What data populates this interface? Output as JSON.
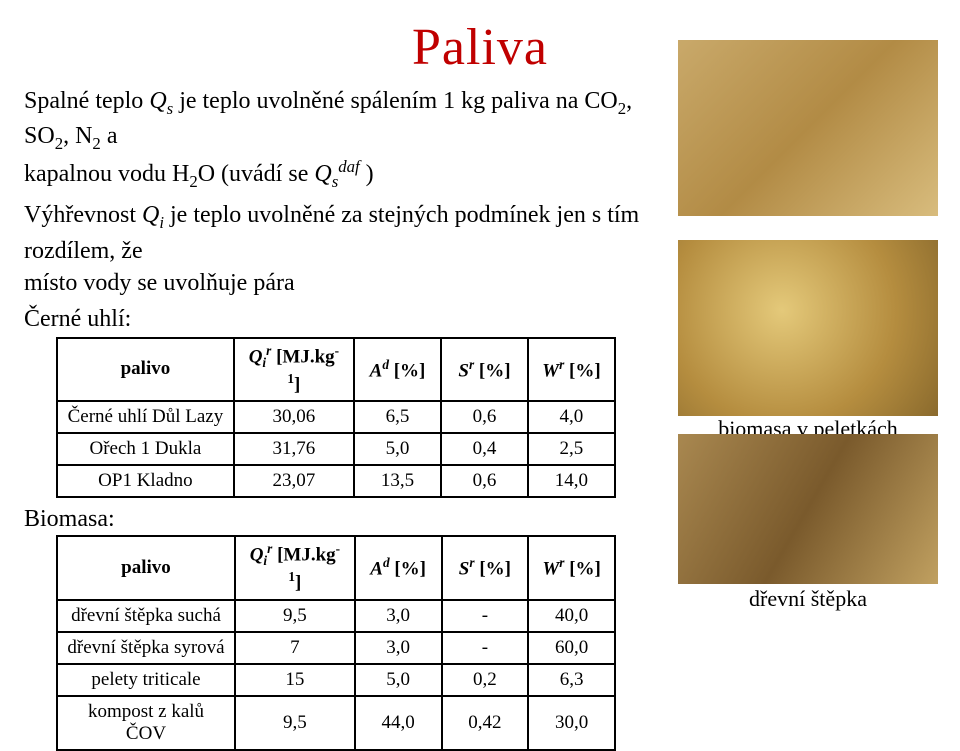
{
  "title": "Paliva",
  "intro": {
    "line1a": "Spalné teplo ",
    "Qs": "Q",
    "Qs_sub": "s",
    "line1b": " je teplo uvolněné spálením 1 kg paliva na CO",
    "co2_sub": "2",
    "line1c": ", SO",
    "so2_sub": "2",
    "line1d": ", N",
    "n2_sub": "2",
    "line1e": " a",
    "line2a": "kapalnou vodu H",
    "h2o_sub": "2",
    "line2b": "O (uvádí se ",
    "Qdaf": "Q",
    "Qdaf_sub": "s",
    "Qdaf_sup": "daf",
    "line2c": " )",
    "line3a": "Výhřevnost ",
    "Qi": "Q",
    "Qi_sub": "i",
    "line3b": " je teplo uvolněné za stejných podmínek jen s tím rozdílem, že",
    "line4": "místo vody se uvolňuje pára"
  },
  "blackCoalHeading": "Černé uhlí:",
  "table1": {
    "headers": {
      "c0": "palivo",
      "c1_sym": "Q",
      "c1_sub": "i",
      "c1_sup": "r",
      "c1_unit": " [MJ.kg",
      "c1_unit_sup": "-1",
      "c1_unit_end": "]",
      "c2_sym": "A",
      "c2_sup": "d",
      "c2_unit": " [%]",
      "c3_sym": "S",
      "c3_sup": "r",
      "c3_unit": " [%]",
      "c4_sym": "W",
      "c4_sup": "r",
      "c4_unit": " [%]"
    },
    "rows": [
      {
        "name": "Černé uhlí Důl Lazy",
        "q": "30,06",
        "a": "6,5",
        "s": "0,6",
        "w": "4,0"
      },
      {
        "name": "Ořech 1 Dukla",
        "q": "31,76",
        "a": "5,0",
        "s": "0,4",
        "w": "2,5"
      },
      {
        "name": "OP1 Kladno",
        "q": "23,07",
        "a": "13,5",
        "s": "0,6",
        "w": "14,0"
      }
    ]
  },
  "biomassLabel": "Biomasa:",
  "table2": {
    "headers": {
      "c0": "palivo",
      "c1_sym": "Q",
      "c1_sub": "i",
      "c1_sup": "r",
      "c1_unit": " [MJ.kg",
      "c1_unit_sup": "-1",
      "c1_unit_end": "]",
      "c2_sym": "A",
      "c2_sup": "d",
      "c2_unit": " [%]",
      "c3_sym": "S",
      "c3_sup": "r",
      "c3_unit": " [%]",
      "c4_sym": "W",
      "c4_sup": "r",
      "c4_unit": " [%]"
    },
    "rows": [
      {
        "name": "dřevní štěpka suchá",
        "q": "9,5",
        "a": "3,0",
        "s": "-",
        "w": "40,0"
      },
      {
        "name": "dřevní štěpka syrová",
        "q": "7",
        "a": "3,0",
        "s": "-",
        "w": "60,0"
      },
      {
        "name": "pelety triticale",
        "q": "15",
        "a": "5,0",
        "s": "0,2",
        "w": "6,3"
      },
      {
        "name": "kompost z kalů ČOV",
        "q": "9,5",
        "a": "44,0",
        "s": "0,42",
        "w": "30,0"
      }
    ]
  },
  "captions": {
    "pellets": "biomasa v peletkách",
    "chips": "dřevní štěpka"
  },
  "colors": {
    "title": "#c00000",
    "text": "#000000",
    "border": "#000000",
    "bg": "#ffffff"
  }
}
